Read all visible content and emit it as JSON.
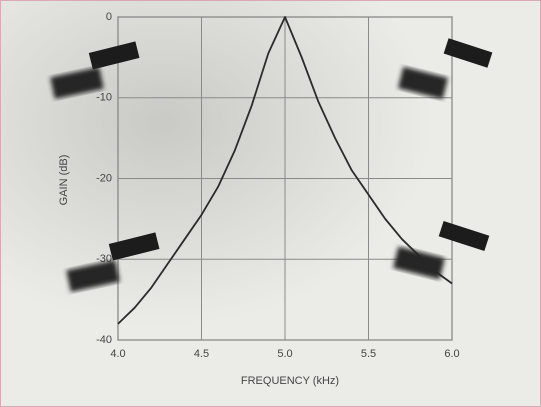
{
  "chart_data": {
    "type": "line",
    "x_label": "FREQUENCY (kHz)",
    "y_label": "GAIN (dB)",
    "x": [
      4.0,
      4.1,
      4.2,
      4.3,
      4.4,
      4.5,
      4.6,
      4.7,
      4.8,
      4.9,
      5.0,
      5.1,
      5.2,
      5.3,
      5.4,
      5.5,
      5.6,
      5.7,
      5.8,
      5.9,
      6.0
    ],
    "series": [
      {
        "color": "#2b2b2b",
        "values": [
          -38,
          -36,
          -33.5,
          -30.5,
          -27.5,
          -24.5,
          -21,
          -16.5,
          -11,
          -4.5,
          0,
          -5,
          -10.5,
          -15,
          -19,
          -22,
          -25,
          -27.5,
          -29.5,
          -31.5,
          -33
        ]
      }
    ],
    "xlim": [
      4.0,
      6.0
    ],
    "xticks": [
      {
        "value": 4,
        "label": "4.0"
      },
      4.5,
      {
        "value": 5,
        "label": "5.0"
      },
      5.5,
      {
        "value": 6,
        "label": "6.0"
      }
    ],
    "ylim": [
      -40,
      0
    ],
    "yticks": [
      0,
      -10,
      -20,
      -30,
      -40
    ],
    "grid": true
  }
}
